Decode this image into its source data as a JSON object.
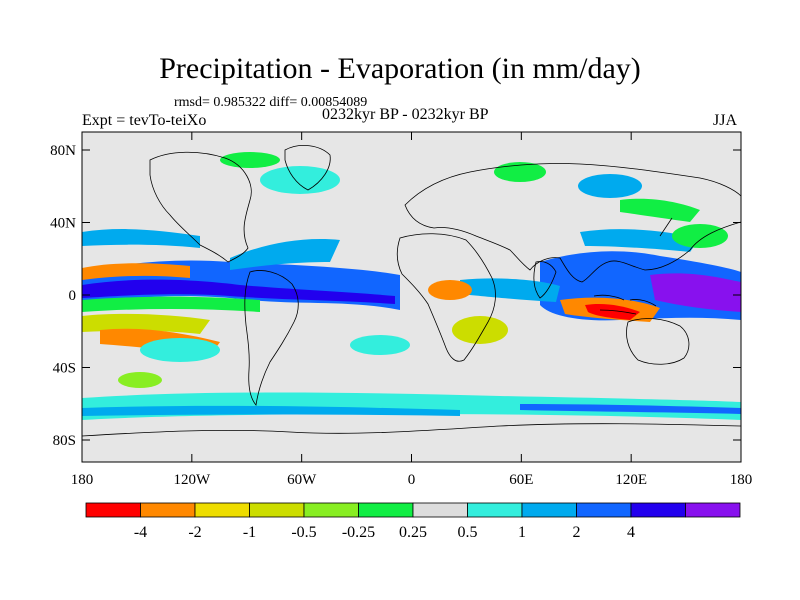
{
  "title": "Precipitation - Evaporation (in mm/day)",
  "stats_text": "rmsd= 0.985322 diff= 0.00854089",
  "experiment_text": "Expt = tevTo-teiXo",
  "period_text": "0232kyr BP - 0232kyr BP",
  "season_text": "JJA",
  "lat_ticks": [
    {
      "label": "80N",
      "lat": 80
    },
    {
      "label": "40N",
      "lat": 40
    },
    {
      "label": "0",
      "lat": 0
    },
    {
      "label": "40S",
      "lat": -40
    },
    {
      "label": "80S",
      "lat": -80
    }
  ],
  "lon_ticks": [
    {
      "label": "180",
      "lon": -180
    },
    {
      "label": "120W",
      "lon": -120
    },
    {
      "label": "60W",
      "lon": -60
    },
    {
      "label": "0",
      "lon": 0
    },
    {
      "label": "60E",
      "lon": 60
    },
    {
      "label": "120E",
      "lon": 120
    },
    {
      "label": "180",
      "lon": 180
    }
  ],
  "colorbar": {
    "colors": [
      "#ff0000",
      "#ff8800",
      "#eedd00",
      "#ccdd00",
      "#88ee22",
      "#11ee44",
      "#dddddd",
      "#33eedd",
      "#00aaee",
      "#1166ff",
      "#2200ee",
      "#8811ee"
    ],
    "labels": [
      "-4",
      "-2",
      "-1",
      "-0.5",
      "-0.25",
      "0.25",
      "0.5",
      "1",
      "2",
      "4"
    ]
  },
  "colors": {
    "neutral": "#e6e6e6",
    "coast": "#000000"
  }
}
